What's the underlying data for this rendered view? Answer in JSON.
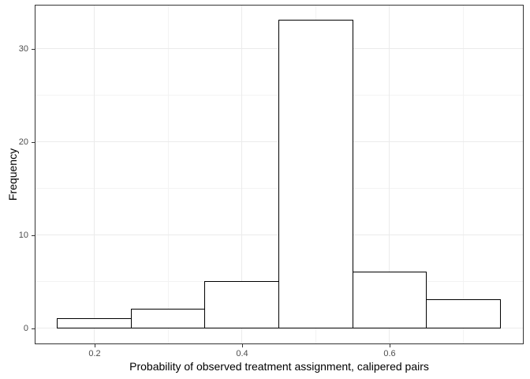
{
  "chart_data": {
    "type": "bar",
    "subtype": "histogram",
    "title": "",
    "xlabel": "Probability of observed treatment assignment, calipered pairs",
    "ylabel": "Frequency",
    "bin_edges": [
      0.15,
      0.25,
      0.35,
      0.45,
      0.55,
      0.65,
      0.75
    ],
    "counts": [
      1,
      2,
      5,
      33,
      6,
      3
    ],
    "x_ticks": [
      0.2,
      0.4,
      0.6
    ],
    "x_tick_labels": [
      "0.2",
      "0.4",
      "0.6"
    ],
    "x_minor_gridlines": [
      0.3,
      0.5,
      0.7
    ],
    "y_ticks": [
      0,
      10,
      20,
      30
    ],
    "y_tick_labels": [
      "0",
      "10",
      "20",
      "30"
    ],
    "y_minor_gridlines": [
      5,
      15,
      25
    ],
    "x_domain": [
      0.12,
      0.78
    ],
    "y_domain": [
      -1.65,
      34.65
    ],
    "grid": true,
    "legend": false,
    "colors": {
      "background": "#ffffff",
      "panel_background": "#ffffff",
      "panel_border": "#333333",
      "grid_major": "#ebebeb",
      "grid_minor": "#f3f3f3",
      "bar_fill": "#ffffff",
      "bar_stroke": "#000000",
      "tick_mark": "#333333",
      "tick_label": "#4d4d4d",
      "axis_title": "#000000"
    }
  }
}
